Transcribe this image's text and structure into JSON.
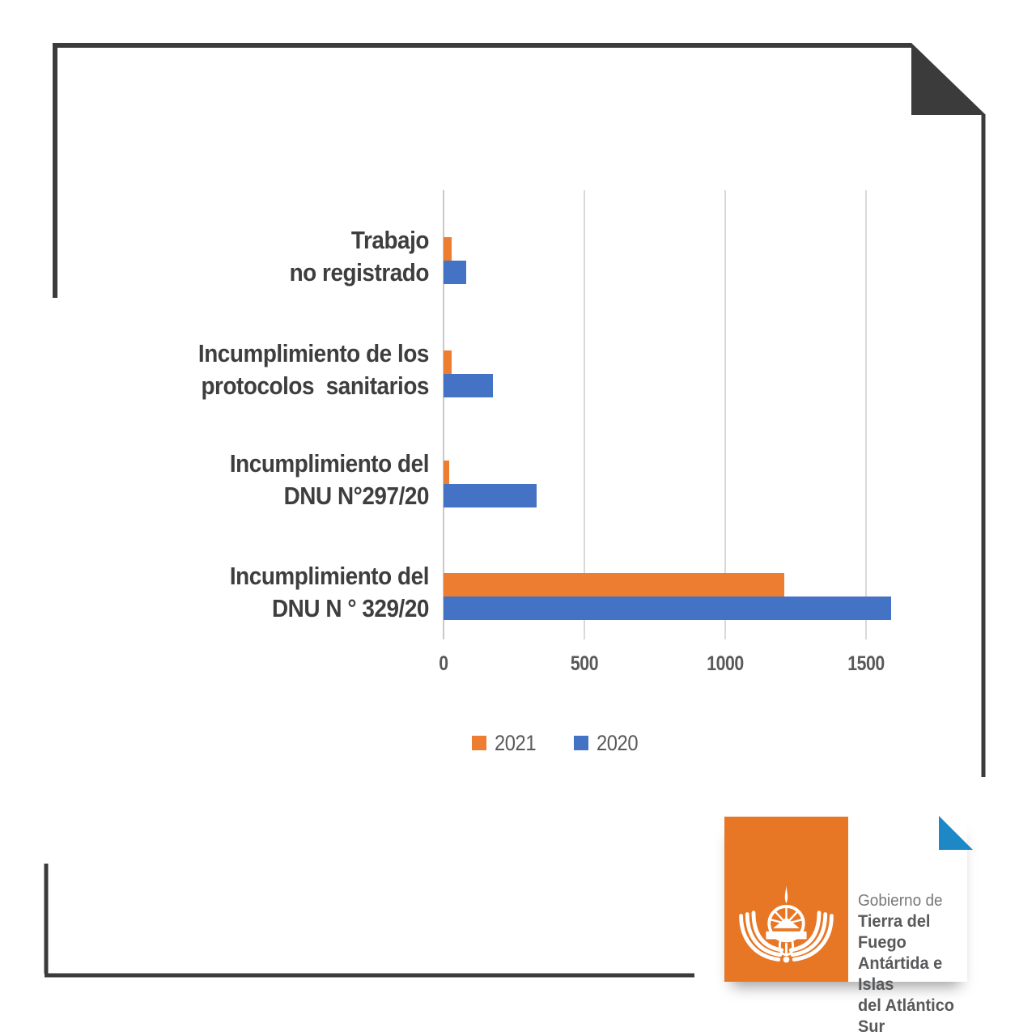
{
  "page": {
    "background": "#FFFFFF"
  },
  "frame": {
    "color": "#3B3B3B",
    "accent_triangle_color": "#1E88C7"
  },
  "chart_data": {
    "type": "bar",
    "orientation": "horizontal",
    "title": "",
    "xlabel": "",
    "ylabel": "",
    "categories": [
      {
        "label": "Trabajo no registrado",
        "lines": [
          "Trabajo",
          "no registrado"
        ]
      },
      {
        "label": "Incumplimiento de los protocolos sanitarios",
        "lines": [
          "Incumplimiento de los",
          "protocolos  sanitarios"
        ]
      },
      {
        "label": "Incumplimiento del DNU N°297/20",
        "lines": [
          "Incumplimiento del",
          "DNU N°297/20"
        ]
      },
      {
        "label": "Incumplimiento del DNU N ° 329/20",
        "lines": [
          "Incumplimiento del",
          "DNU N ° 329/20"
        ]
      }
    ],
    "series": [
      {
        "name": "2021",
        "color": "#ED7D31",
        "values": [
          30,
          30,
          20,
          1210
        ]
      },
      {
        "name": "2020",
        "color": "#4472C4",
        "values": [
          80,
          175,
          330,
          1590
        ]
      }
    ],
    "x_ticks": [
      0,
      500,
      1000,
      1500
    ],
    "x_tick_labels": [
      "0",
      "500",
      "1000",
      "1500"
    ],
    "xlim": [
      0,
      1560
    ],
    "grid": "vertical-light-gray",
    "legend_position": "bottom"
  },
  "logo": {
    "line1": "Gobierno de",
    "line2": "Tierra del Fuego",
    "line3": "Antártida e Islas",
    "line4": "del Atlántico Sur",
    "box_color": "#E87725",
    "emblem": "coat-of-arms-tierra-del-fuego"
  },
  "icons": {
    "coat_of_arms": "white albatross-wings and sun emblem",
    "page_fold": "dark folded-corner triangle",
    "corner_accent": "cyan right triangle"
  }
}
